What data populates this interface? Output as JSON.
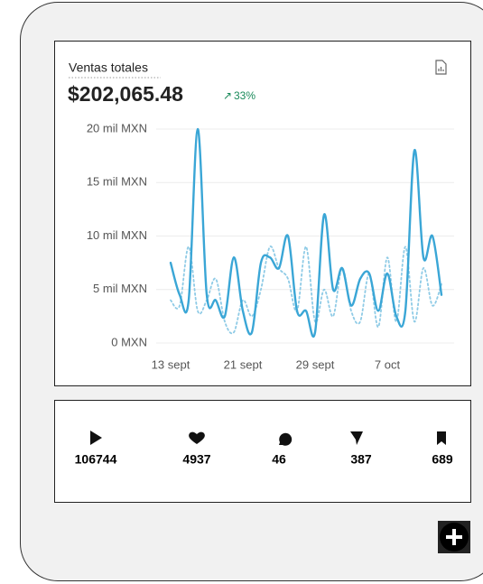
{
  "header": {
    "title": "Ventas totales",
    "total": "$202,065.48",
    "change": "33%"
  },
  "chart_data": {
    "type": "line",
    "categories": [
      "13 sept",
      null,
      null,
      null,
      null,
      null,
      null,
      null,
      "21 sept",
      null,
      null,
      null,
      null,
      null,
      null,
      null,
      "29 sept",
      null,
      null,
      null,
      null,
      null,
      null,
      null,
      "7 oct",
      null,
      null,
      null,
      null,
      null,
      null
    ],
    "series": [
      {
        "color": "#3aa6d6",
        "style": "solid",
        "values": [
          7500,
          4500,
          4000,
          20000,
          4500,
          4000,
          2500,
          8000,
          3000,
          1000,
          7500,
          8000,
          7000,
          10000,
          3000,
          3000,
          1000,
          12000,
          5000,
          7000,
          3500,
          6000,
          6500,
          3000,
          6500,
          2500,
          3000,
          18000,
          8000,
          10000,
          4500
        ]
      },
      {
        "color": "#8fcbe6",
        "style": "dotted",
        "values": [
          4000,
          3500,
          9000,
          3000,
          4000,
          6000,
          2000,
          1000,
          4000,
          2500,
          5000,
          9000,
          7000,
          6000,
          3000,
          9000,
          2000,
          5000,
          2500,
          7000,
          3000,
          2000,
          6500,
          1500,
          8000,
          2000,
          9000,
          2000,
          7000,
          3500,
          5500
        ]
      }
    ],
    "ylim": [
      0,
      20000
    ],
    "yticks": [
      {
        "value": 0,
        "label": "0 MXN"
      },
      {
        "value": 5000,
        "label": "5 mil MXN"
      },
      {
        "value": 10000,
        "label": "10 mil MXN"
      },
      {
        "value": 15000,
        "label": "15 mil MXN"
      },
      {
        "value": 20000,
        "label": "20 mil MXN"
      }
    ],
    "grid": true
  },
  "stats": [
    "106744",
    "4937",
    "46",
    "387",
    "689"
  ]
}
